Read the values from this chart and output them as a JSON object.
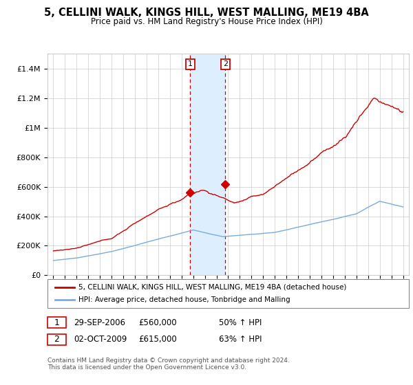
{
  "title": "5, CELLINI WALK, KINGS HILL, WEST MALLING, ME19 4BA",
  "subtitle": "Price paid vs. HM Land Registry's House Price Index (HPI)",
  "legend_line1": "5, CELLINI WALK, KINGS HILL, WEST MALLING, ME19 4BA (detached house)",
  "legend_line2": "HPI: Average price, detached house, Tonbridge and Malling",
  "sale1_date": "29-SEP-2006",
  "sale1_price": "£560,000",
  "sale1_hpi": "50% ↑ HPI",
  "sale2_date": "02-OCT-2009",
  "sale2_price": "£615,000",
  "sale2_hpi": "63% ↑ HPI",
  "footer": "Contains HM Land Registry data © Crown copyright and database right 2024.\nThis data is licensed under the Open Government Licence v3.0.",
  "sale1_x": 2006.75,
  "sale2_x": 2009.75,
  "sale1_y": 560000,
  "sale2_y": 615000,
  "red_color": "#cc0000",
  "blue_color": "#7aabdc",
  "shade_color": "#ddeeff",
  "ylim": [
    0,
    1500000
  ],
  "xlim": [
    1994.5,
    2025.5
  ],
  "background_color": "#ffffff",
  "grid_color": "#cccccc"
}
